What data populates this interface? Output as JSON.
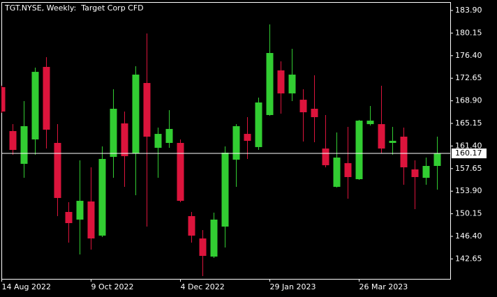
{
  "chart_data": {
    "type": "candlestick",
    "title": "TGT.NYSE, Weekly:  Target Corp CFD",
    "categories": [
      "14 Aug 2022",
      null,
      null,
      null,
      null,
      null,
      null,
      null,
      "9 Oct 2022",
      null,
      null,
      null,
      null,
      null,
      null,
      null,
      "4 Dec 2022",
      null,
      null,
      null,
      null,
      null,
      null,
      null,
      "29 Jan 2023",
      null,
      null,
      null,
      null,
      null,
      null,
      null,
      "26 Mar 2023",
      null,
      null,
      null,
      null,
      null,
      null,
      null
    ],
    "open": [
      171.17,
      163.88,
      158.44,
      162.49,
      174.53,
      161.91,
      150.45,
      149.18,
      152.19,
      146.52,
      159.59,
      165.15,
      160.17,
      171.86,
      161.1,
      161.91,
      161.91,
      149.76,
      146.05,
      143.04,
      148.02,
      159.13,
      163.41,
      161.22,
      166.54,
      173.95,
      170.13,
      169.08,
      167.58,
      160.98,
      154.62,
      158.55,
      155.89,
      165.03,
      165.03,
      161.91,
      162.95,
      157.51,
      156.12,
      158.09
    ],
    "high": [
      171.4,
      165.03,
      168.85,
      174.41,
      176.15,
      165.03,
      152.07,
      159.02,
      157.86,
      161.33,
      170.82,
      167.12,
      174.64,
      180.08,
      164.46,
      167.35,
      162.49,
      150.45,
      147.44,
      150.34,
      161.33,
      165.03,
      166.19,
      169.43,
      181.59,
      175.45,
      177.53,
      170.82,
      173.14,
      166.54,
      163.65,
      164.57,
      165.73,
      168.04,
      171.4,
      164.57,
      164.46,
      159.02,
      159.48,
      162.95
    ],
    "low": [
      166.9,
      159.94,
      156.12,
      159.94,
      160.98,
      149.76,
      145.36,
      143.39,
      144.2,
      146.28,
      156.12,
      154.62,
      153.23,
      148.02,
      156.12,
      161.1,
      152.07,
      145.36,
      139.8,
      142.81,
      144.55,
      154.62,
      159.25,
      160.75,
      166.42,
      166.77,
      168.85,
      162.14,
      162.03,
      157.86,
      154.5,
      152.65,
      155.77,
      164.8,
      160.17,
      159.94,
      154.97,
      150.92,
      154.97,
      154.16
    ],
    "close": [
      167.12,
      160.75,
      164.69,
      173.71,
      164.11,
      152.77,
      148.6,
      152.3,
      146.05,
      159.25,
      167.58,
      159.71,
      173.25,
      162.95,
      163.41,
      164.23,
      152.3,
      146.52,
      143.16,
      149.18,
      160.29,
      164.69,
      162.26,
      168.62,
      176.84,
      170.13,
      173.25,
      167.0,
      166.19,
      158.21,
      159.48,
      156.24,
      165.61,
      165.61,
      160.98,
      162.26,
      157.86,
      156.24,
      158.09,
      160.17
    ],
    "up_color": "#32cd32",
    "down_color": "#dc143c",
    "ylim": [
      139.34,
      185.29
    ],
    "yticks": [
      {
        "value": 183.9,
        "label": "183.90"
      },
      {
        "value": 180.15,
        "label": "180.15"
      },
      {
        "value": 176.4,
        "label": "176.40"
      },
      {
        "value": 172.65,
        "label": "172.65"
      },
      {
        "value": 168.9,
        "label": "168.90"
      },
      {
        "value": 165.15,
        "label": "165.15"
      },
      {
        "value": 161.4,
        "label": "161.40"
      },
      {
        "value": 157.65,
        "label": "157.65"
      },
      {
        "value": 153.9,
        "label": "153.90"
      },
      {
        "value": 150.15,
        "label": "150.15"
      },
      {
        "value": 146.4,
        "label": "146.40"
      },
      {
        "value": 142.65,
        "label": "142.65"
      }
    ],
    "current_price": {
      "value": 160.17,
      "label": "160.17"
    }
  }
}
